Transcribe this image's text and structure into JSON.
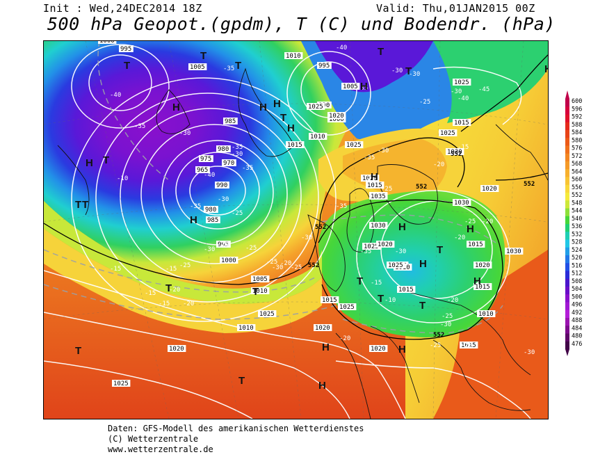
{
  "header": {
    "init": "Init : Wed,24DEC2014 18Z",
    "valid": "Valid: Thu,01JAN2015 00Z",
    "title": "500 hPa Geopot.(gpdm), T (C) und Bodendr. (hPa)"
  },
  "footer": {
    "line1": "Daten: GFS-Modell des amerikanischen Wetterdienstes",
    "line2": "(C) Wetterzentrale",
    "line3": "www.wetterzentrale.de"
  },
  "legend": {
    "levels": [
      "600",
      "596",
      "592",
      "588",
      "584",
      "580",
      "576",
      "572",
      "568",
      "564",
      "560",
      "556",
      "552",
      "548",
      "544",
      "540",
      "536",
      "532",
      "528",
      "524",
      "520",
      "516",
      "512",
      "508",
      "504",
      "500",
      "496",
      "492",
      "488",
      "484",
      "480",
      "476"
    ],
    "colors": [
      "#c0004a",
      "#d6003c",
      "#e0102a",
      "#e52a1c",
      "#e84418",
      "#ec5a18",
      "#f0701c",
      "#f38622",
      "#f59a28",
      "#f7b02e",
      "#f8c434",
      "#f9d83a",
      "#f5ea3c",
      "#cde83a",
      "#8ee03a",
      "#46d63a",
      "#22d072",
      "#1fcfb4",
      "#22c8e6",
      "#229fe8",
      "#2278e8",
      "#2250e6",
      "#2a2cd8",
      "#4a16cc",
      "#6a0ec8",
      "#8a10cc",
      "#a018d4",
      "#b41ed8",
      "#9a14b0",
      "#7c0c8c",
      "#5e0868",
      "#420448"
    ]
  },
  "map": {
    "isobars": [
      "1000",
      "995",
      "1005",
      "1010",
      "995",
      "990",
      "1000",
      "985",
      "980",
      "975",
      "970",
      "965",
      "990",
      "980",
      "985",
      "995",
      "1000",
      "1005",
      "1010",
      "1005",
      "1020",
      "1025",
      "1020",
      "1015",
      "1020",
      "1025",
      "1015",
      "1025",
      "1030",
      "1010",
      "1015",
      "1025",
      "1035",
      "1030",
      "1025",
      "1030",
      "1015",
      "1015",
      "1020",
      "1010",
      "1015",
      "1020",
      "1025",
      "1020",
      "1010",
      "1015",
      "1020",
      "1015",
      "1025",
      "1020",
      "1025",
      "1010",
      "1020",
      "1025",
      "1020",
      "1030"
    ],
    "temps": [
      "-40",
      "-35",
      "-30",
      "-35",
      "-30",
      "-25",
      "-30",
      "-40",
      "-45",
      "-40",
      "-35",
      "-30",
      "-35",
      "-30",
      "-35",
      "-40",
      "-35",
      "-30",
      "-25",
      "-20",
      "-25",
      "-30",
      "-25",
      "-20",
      "-15",
      "-20",
      "-15",
      "-15",
      "-25",
      "-30",
      "-20",
      "-25",
      "-30",
      "-35",
      "-35",
      "-30",
      "-25",
      "-20",
      "-15",
      "-10",
      "-15",
      "-25",
      "-35",
      "-30",
      "-20",
      "-20",
      "-25",
      "-30",
      "-25",
      "-20",
      "-20",
      "-15",
      "-10",
      "-25",
      "-20",
      "-30"
    ],
    "geo": [
      "552",
      "552",
      "552",
      "552",
      "552",
      "552"
    ],
    "highs_lows": [
      "T",
      "T",
      "T",
      "H",
      "T",
      "T",
      "H",
      "T",
      "H",
      "H",
      "H",
      "T",
      "H",
      "T",
      "H",
      "T",
      "T",
      "T",
      "T",
      "T",
      "H",
      "H",
      "T",
      "H",
      "T",
      "H",
      "H",
      "H",
      "H",
      "T",
      "T",
      "H",
      "H"
    ]
  }
}
